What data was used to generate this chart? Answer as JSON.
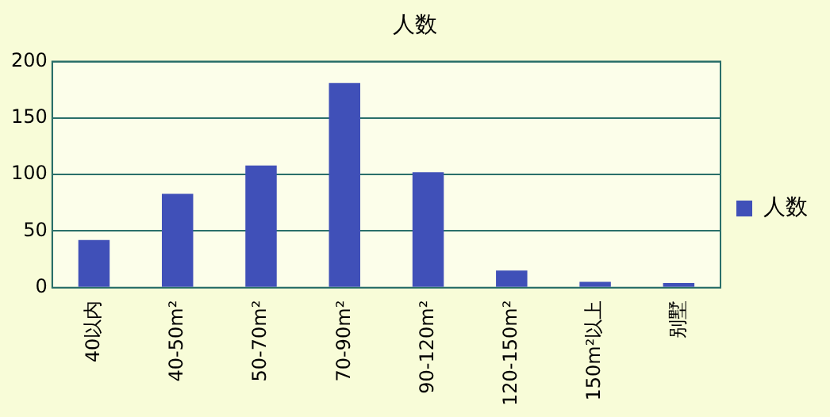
{
  "chart_data": {
    "type": "bar",
    "title": "人数",
    "categories": [
      "40以内",
      "40-50m²",
      "50-70m²",
      "70-90m²",
      "90-120m²",
      "120-150m²",
      "150m²以上",
      "别墅"
    ],
    "series": [
      {
        "name": "人数",
        "color": "#4050b8",
        "values": [
          42,
          83,
          108,
          181,
          102,
          15,
          5,
          4
        ]
      }
    ],
    "ylim": [
      0,
      200
    ],
    "yticks": [
      0,
      50,
      100,
      150,
      200
    ],
    "grid": "y",
    "legend": "right"
  }
}
